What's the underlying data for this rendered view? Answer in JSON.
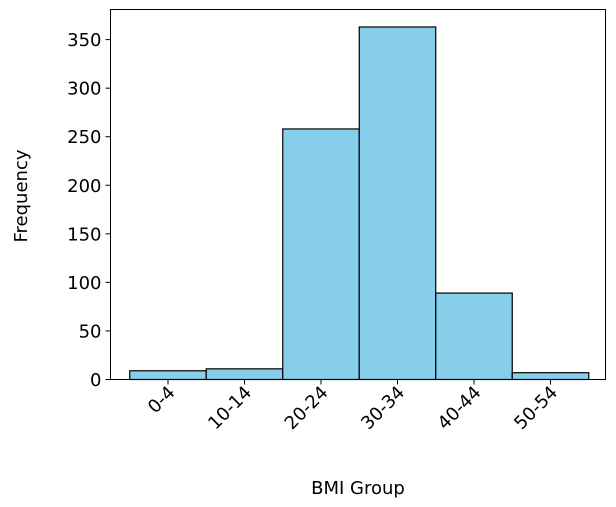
{
  "chart_data": {
    "type": "bar",
    "categories": [
      "0-4",
      "10-14",
      "20-24",
      "30-34",
      "40-44",
      "50-54"
    ],
    "values": [
      9,
      11,
      258,
      363,
      89,
      7
    ],
    "xlabel": "BMI Group",
    "ylabel": "Frequency",
    "ylim": [
      0,
      381
    ],
    "yticks": [
      0,
      50,
      100,
      150,
      200,
      250,
      300,
      350
    ],
    "bar_color": "#87CEEB",
    "edge_color": "#000000",
    "grid": false,
    "legend": "none"
  }
}
